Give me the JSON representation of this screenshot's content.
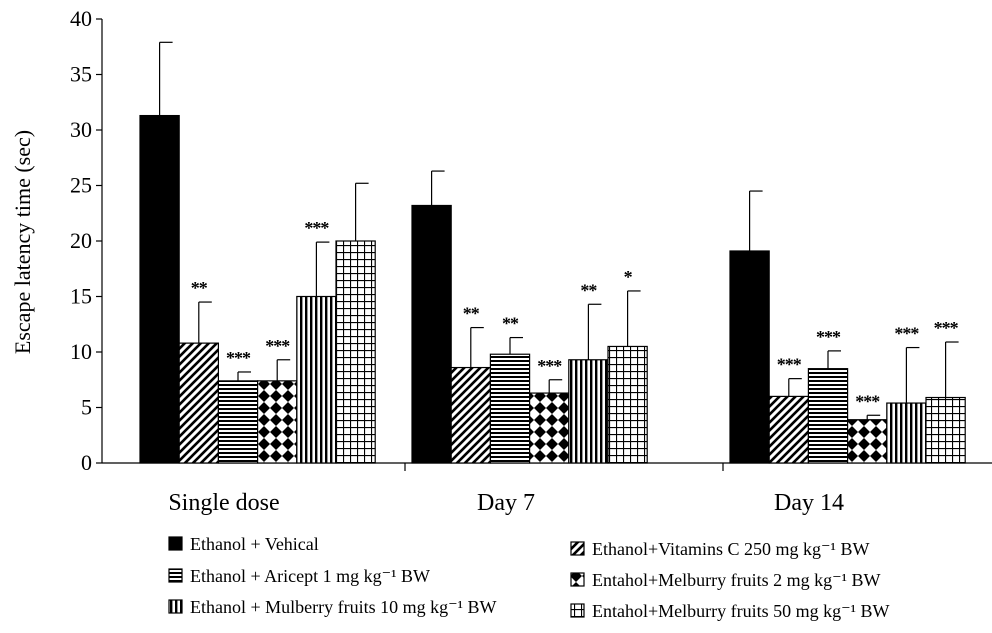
{
  "chart_data": {
    "type": "bar",
    "title": "",
    "xlabel": "",
    "ylabel": "Escape latency time (sec)",
    "ylim": [
      0,
      40
    ],
    "yticks": [
      0,
      5,
      10,
      15,
      20,
      25,
      30,
      35,
      40
    ],
    "grid": false,
    "legend_position": "bottom",
    "categories": [
      "Single dose",
      "Day 7",
      "Day 14"
    ],
    "series": [
      {
        "name": "Ethanol + Vehical",
        "pattern": "solid",
        "values": [
          31.3,
          23.2,
          19.1
        ],
        "errors": [
          6.6,
          3.1,
          5.4
        ],
        "sig": [
          "",
          "",
          ""
        ]
      },
      {
        "name": "Ethanol+Vitamins C 250 mg kg⁻¹ BW",
        "pattern": "diagonal",
        "values": [
          10.8,
          8.6,
          6.0
        ],
        "errors": [
          3.7,
          3.6,
          1.6
        ],
        "sig": [
          "**",
          "**",
          "***"
        ]
      },
      {
        "name": "Ethanol + Aricept 1 mg kg⁻¹ BW",
        "pattern": "horizontal",
        "values": [
          7.4,
          9.8,
          8.5
        ],
        "errors": [
          0.8,
          1.5,
          1.6
        ],
        "sig": [
          "***",
          "**",
          "***"
        ]
      },
      {
        "name": "Entahol+Melburry fruits 2 mg kg⁻¹ BW",
        "pattern": "diamond",
        "values": [
          7.4,
          6.3,
          3.9
        ],
        "errors": [
          1.9,
          1.2,
          0.4
        ],
        "sig": [
          "***",
          "***",
          "***"
        ]
      },
      {
        "name": "Ethanol + Mulberry fruits 10 mg kg⁻¹ BW",
        "pattern": "vertical",
        "values": [
          15.0,
          9.3,
          5.4
        ],
        "errors": [
          4.9,
          5.0,
          5.0
        ],
        "sig": [
          "***",
          "**",
          "***"
        ]
      },
      {
        "name": "Entahol+Melburry fruits 50 mg kg⁻¹ BW",
        "pattern": "grid",
        "values": [
          20.0,
          10.5,
          5.9
        ],
        "errors": [
          5.2,
          5.0,
          5.0
        ],
        "sig": [
          "",
          "*",
          "***"
        ]
      }
    ],
    "legend_order": [
      0,
      1,
      2,
      3,
      4,
      5
    ]
  }
}
